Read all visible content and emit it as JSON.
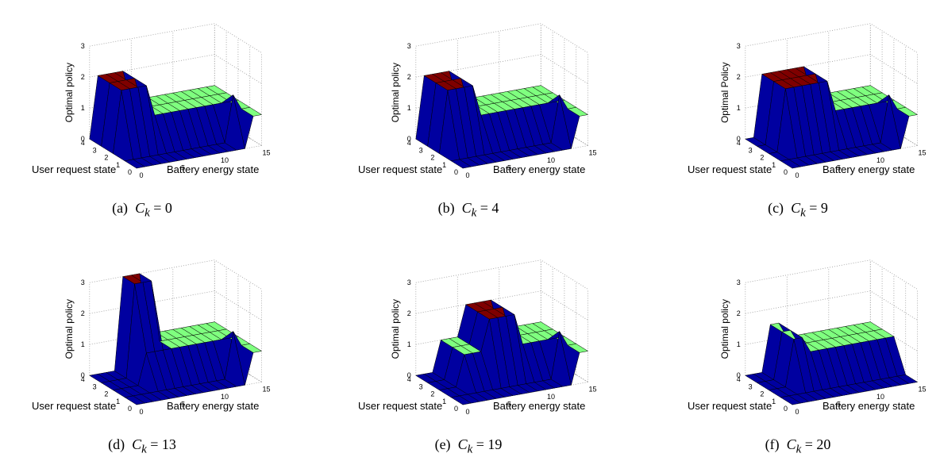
{
  "figure": {
    "panels": [
      {
        "letter": "(a)",
        "ck": "0"
      },
      {
        "letter": "(b)",
        "ck": "4"
      },
      {
        "letter": "(c)",
        "ck": "9"
      },
      {
        "letter": "(d)",
        "ck": "13"
      },
      {
        "letter": "(e)",
        "ck": "19"
      },
      {
        "letter": "(f)",
        "ck": "20"
      }
    ],
    "caption_var": "C",
    "caption_sub": "k",
    "caption_eq": "="
  },
  "colors": {
    "level0": "#0000a0",
    "level1": "#7fff7f",
    "level2": "#7f0000"
  },
  "chart_data": [
    {
      "type": "surface3d",
      "ylabel_raw": "Optimal policy",
      "xlabel": "Battery energy state",
      "ylabel_axis": "User request state",
      "x_ticks": [
        "0",
        "5",
        "10",
        "15"
      ],
      "y_ticks": [
        "0",
        "1",
        "2",
        "3",
        "4"
      ],
      "z_ticks": [
        "0",
        "1",
        "2",
        "3"
      ],
      "x_range": [
        0,
        15
      ],
      "y_range": [
        0,
        4
      ],
      "z_range": [
        0,
        3
      ],
      "policy_high_states": [
        1,
        2,
        3,
        4
      ],
      "low_row_threshold": 3,
      "regions": [
        {
          "user_states": [
            2,
            3,
            4
          ],
          "battery_from": 0,
          "battery_to": 1,
          "action": 0
        },
        {
          "user_states": [
            2,
            3,
            4
          ],
          "battery_from": 1,
          "battery_to": 2,
          "action": 2
        },
        {
          "user_states": [
            2,
            3,
            4
          ],
          "battery_from": 2,
          "battery_to": 6,
          "action": 1
        },
        {
          "user_states": [
            2,
            3,
            4
          ],
          "battery_from": 6,
          "battery_to": 12,
          "action": 2
        },
        {
          "user_states": [
            2,
            3,
            4
          ],
          "battery_from": 12,
          "battery_to": 15,
          "action": 1
        }
      ]
    },
    {
      "type": "surface3d",
      "ylabel_raw": "Optimal policy",
      "xlabel": "Battery energy state",
      "ylabel_axis": "User request state"
    },
    {
      "type": "surface3d",
      "ylabel_raw": "Optimal Policy",
      "xlabel": "Battery energy state",
      "ylabel_axis": "User request state"
    },
    {
      "type": "surface3d",
      "ylabel_raw": "Optimal policy",
      "xlabel": "Battery energy state",
      "ylabel_axis": "User request state"
    },
    {
      "type": "surface3d",
      "ylabel_raw": "Optimal policy",
      "xlabel": "Battery energy state",
      "ylabel_axis": "User request state"
    },
    {
      "type": "surface3d",
      "ylabel_raw": "Optimal policy",
      "xlabel": "Battery energy state",
      "ylabel_axis": "User request state"
    }
  ]
}
